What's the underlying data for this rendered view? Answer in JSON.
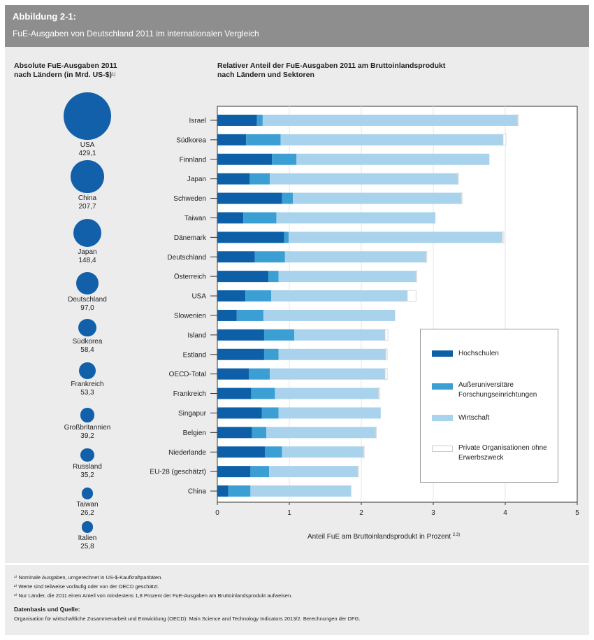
{
  "header": {
    "figure_label": "Abbildung 2-1:",
    "title": "FuE-Ausgaben von Deutschland 2011 im internationalen Vergleich"
  },
  "left_panel": {
    "title_line1": "Absolute FuE-Ausgaben 2011",
    "title_line2": "nach Ländern (in Mrd. US-$)",
    "title_sup": "1)",
    "bubbles": [
      {
        "country": "USA",
        "value_label": "429,1",
        "value": 429.1
      },
      {
        "country": "China",
        "value_label": "207,7",
        "value": 207.7
      },
      {
        "country": "Japan",
        "value_label": "148,4",
        "value": 148.4
      },
      {
        "country": "Deutschland",
        "value_label": "97,0",
        "value": 97.0
      },
      {
        "country": "Südkorea",
        "value_label": "58,4",
        "value": 58.4
      },
      {
        "country": "Frankreich",
        "value_label": "53,3",
        "value": 53.3
      },
      {
        "country": "Großbritannien",
        "value_label": "39,2",
        "value": 39.2
      },
      {
        "country": "Russland",
        "value_label": "35,2",
        "value": 35.2
      },
      {
        "country": "Taiwan",
        "value_label": "26,2",
        "value": 26.2
      },
      {
        "country": "Italien",
        "value_label": "25,8",
        "value": 25.8
      }
    ],
    "bubble_color": "#125faa"
  },
  "chart_data": {
    "type": "bar",
    "orientation": "horizontal",
    "stacked": true,
    "title": "Relativer Anteil der FuE-Ausgaben 2011 am Bruttoinlandsprodukt nach Ländern und Sektoren",
    "title_line1": "Relativer Anteil der FuE-Ausgaben 2011 am Bruttoinlandsprodukt",
    "title_line2": "nach Ländern und Sektoren",
    "xlabel": "Anteil FuE am Bruttoinlandsprodukt in Prozent",
    "xlabel_sup": "2,3)",
    "xlim": [
      0,
      5
    ],
    "xticks": [
      0,
      1,
      2,
      3,
      4,
      5
    ],
    "categories": [
      "Israel",
      "Südkorea",
      "Finnland",
      "Japan",
      "Schweden",
      "Taiwan",
      "Dänemark",
      "Deutschland",
      "Österreich",
      "USA",
      "Slowenien",
      "Island",
      "Estland",
      "OECD-Total",
      "Frankreich",
      "Singapur",
      "Belgien",
      "Niederlande",
      "EU-28 (geschätzt)",
      "China"
    ],
    "series": [
      {
        "name": "Hochschulen",
        "color": "#0d5fa8",
        "values": [
          0.55,
          0.4,
          0.76,
          0.45,
          0.9,
          0.36,
          0.93,
          0.52,
          0.71,
          0.39,
          0.27,
          0.65,
          0.65,
          0.44,
          0.47,
          0.62,
          0.48,
          0.66,
          0.46,
          0.15
        ]
      },
      {
        "name": "Außeruniversitäre Forschungseinrichtungen",
        "color": "#3b9fd4",
        "values": [
          0.08,
          0.48,
          0.34,
          0.28,
          0.15,
          0.46,
          0.06,
          0.42,
          0.14,
          0.36,
          0.37,
          0.42,
          0.2,
          0.29,
          0.33,
          0.23,
          0.2,
          0.24,
          0.26,
          0.31
        ]
      },
      {
        "name": "Wirtschaft",
        "color": "#a9d3ec",
        "values": [
          3.54,
          3.09,
          2.68,
          2.61,
          2.34,
          2.21,
          2.97,
          1.96,
          1.91,
          1.89,
          1.83,
          1.26,
          1.49,
          1.6,
          1.44,
          1.42,
          1.52,
          1.13,
          1.23,
          1.4
        ]
      },
      {
        "name": "Private Organisationen ohne Erwerbszweck",
        "color": "#ffffff",
        "values": [
          0.01,
          0.04,
          0.0,
          0.01,
          0.01,
          0.0,
          0.02,
          0.01,
          0.01,
          0.12,
          0.0,
          0.04,
          0.02,
          0.03,
          0.02,
          0.0,
          0.01,
          0.01,
          0.01,
          0.0
        ]
      }
    ],
    "legend_position": "bottom-right inside plot"
  },
  "footer": {
    "note1": "¹⁾ Nominale Ausgaben, umgerechnet in US-$-Kaufkraftparitäten.",
    "note2": "²⁾ Werte sind teilweise vorläufig oder von der OECD geschätzt.",
    "note3": "³⁾ Nur Länder, die 2011 einen Anteil von mindestens 1,8 Prozent der FuE-Ausgaben am Bruttoinlandsprodukt aufweisen.",
    "source_heading": "Datenbasis und Quelle:",
    "source_text": "Organisation für wirtschaftliche Zusammenarbeit und Entwicklung (OECD): Main Science and Technology Indicators 2013/2. Berechnungen der DFG."
  }
}
